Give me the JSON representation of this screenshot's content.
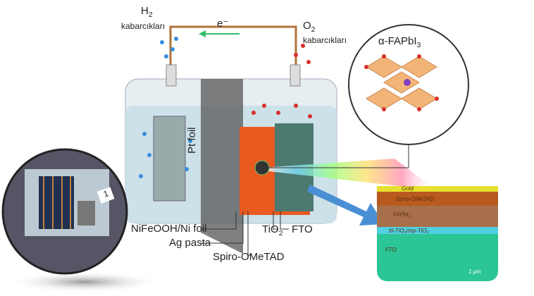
{
  "labels": {
    "h2": "H",
    "h2_sub": "2",
    "h2_bubbles": "kabarcıkları",
    "electron": "e⁻",
    "o2": "O",
    "o2_sub": "2",
    "o2_bubbles": "kabarcıkları",
    "perovskite": "α-FAPbI",
    "perovskite_sub": "3",
    "pt_foil": "Pt foil",
    "nifeooh": "NiFeOOH/Ni foil",
    "ag_paste": "Ag  pasta",
    "spiro": "Spiro-OMeTAD",
    "tio2": "TiO",
    "tio2_sub": "2",
    "fto": "FTO"
  },
  "inset_layers": {
    "gold": "Gold",
    "spiro": "Spiro-OMeTAD",
    "fapbi": "FAPbI",
    "fapbi_sub": "3",
    "tio2": "bl-TiO₂/mp-TiO₂",
    "fto": "FTO",
    "scale": "1 μm"
  },
  "photo": {
    "tag": "1"
  },
  "colors": {
    "wire": "#b0703a",
    "arrow_green": "#2fbf6a",
    "arrow_blue": "#4a8fd4",
    "spiro": "#b85a1e",
    "fapbi": "#a8704a",
    "fto": "#2bc596",
    "gold": "#e8e030"
  }
}
